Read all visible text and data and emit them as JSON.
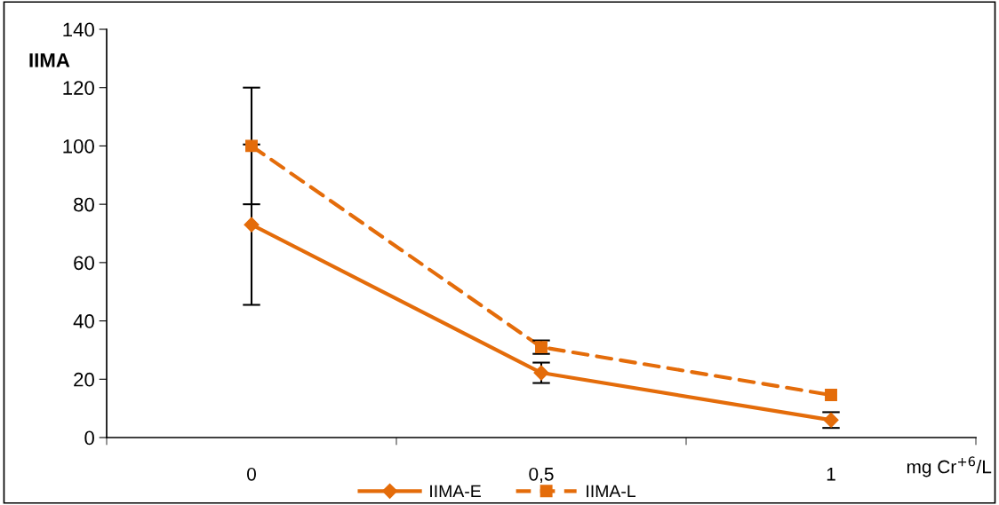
{
  "chart_data": {
    "type": "line",
    "ylabel": "IIMA",
    "xlabel": "mg Cr$^{+6}$/L",
    "categories": [
      "0",
      "0,5",
      "1"
    ],
    "series": [
      {
        "name": "IIMA-E",
        "color": "#e46c0a",
        "values": [
          73,
          22.2,
          6
        ],
        "errors": [
          27.5,
          3.5,
          2.7
        ],
        "marker": "diamond",
        "line_style": "solid"
      },
      {
        "name": "IIMA-L",
        "color": "#e46c0a",
        "values": [
          100,
          31,
          14.6
        ],
        "errors": [
          20,
          2.3,
          null
        ],
        "marker": "square",
        "line_style": "dashed"
      }
    ],
    "ylim": [
      0,
      140
    ],
    "yticks": [
      0,
      20,
      40,
      60,
      80,
      100,
      120,
      140
    ],
    "grid": false,
    "legend": "bottom"
  }
}
